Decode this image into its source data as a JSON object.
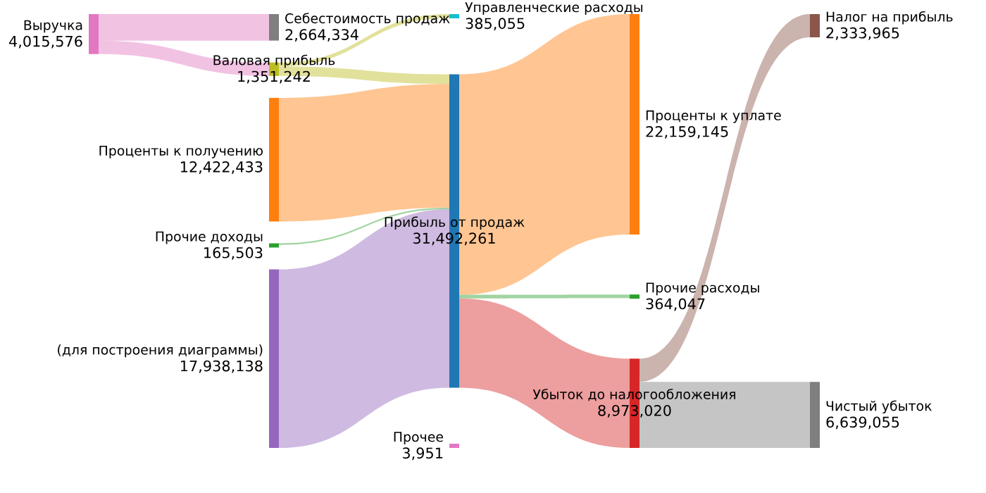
{
  "chart_data": {
    "type": "other",
    "categories": [
      "Выручка",
      "Себестоимость продаж",
      "Валовая прибыль",
      "Управленческие расходы",
      "Проценты к получению",
      "Прочие доходы",
      "(для построения диаграммы)",
      "Прибыль от продаж",
      "Проценты к уплате",
      "Прочие расходы",
      "Убыток до налогообложения",
      "Налог на прибыль",
      "Чистый убыток",
      "Прочее"
    ],
    "values": [
      4015576,
      2664334,
      1351242,
      385055,
      12422433,
      165503,
      17938138,
      31492261,
      22159145,
      364047,
      8973020,
      2333965,
      6639055,
      3951
    ],
    "value_labels": [
      "4,015,576",
      "2,664,334",
      "1,351,242",
      "385,055",
      "12,422,433",
      "165,503",
      "17,938,138",
      "31,492,261",
      "22,159,145",
      "364,047",
      "8,973,020",
      "2,333,965",
      "6,639,055",
      "3,951"
    ],
    "colors": [
      "#e377c2",
      "#7f7f7f",
      "#bcbd22",
      "#17becf",
      "#ff7f0e",
      "#2ca02c",
      "#9467bd",
      "#1f77b4",
      "#ff7f0e",
      "#2ca02c",
      "#d62728",
      "#8c564b",
      "#7f7f7f",
      "#e377c2"
    ],
    "series": [
      {
        "values": [
          null,
          null,
          null,
          null,
          null,
          null,
          null,
          null,
          null,
          null,
          null,
          null,
          null,
          null
        ],
        "colors": [
          null,
          "#e377c2",
          "#e377c2",
          null,
          null,
          null,
          null,
          null,
          null,
          null,
          null,
          null,
          null,
          null
        ]
      },
      {
        "values": [
          null,
          null,
          null,
          null,
          null,
          null,
          null,
          null,
          null,
          null,
          null,
          null,
          null,
          null
        ]
      },
      {
        "values": [
          null,
          null,
          null,
          null,
          null,
          null,
          null,
          null,
          null,
          null,
          null,
          null,
          null,
          null
        ],
        "colors": [
          null,
          null,
          null,
          "#bcbd22",
          null,
          null,
          null,
          "#bcbd22",
          null,
          null,
          null,
          null,
          null,
          null
        ]
      },
      {
        "values": [
          null,
          null,
          null,
          null,
          null,
          null,
          null,
          null,
          null,
          null,
          null,
          null,
          null,
          null
        ]
      },
      {
        "values": [
          null,
          null,
          null,
          null,
          null,
          null,
          null,
          null,
          null,
          null,
          null,
          null,
          null,
          null
        ],
        "colors": [
          null,
          null,
          null,
          null,
          null,
          null,
          null,
          "#ff7f0e",
          null,
          null,
          null,
          null,
          null,
          null
        ]
      },
      {
        "values": [
          null,
          null,
          null,
          null,
          null,
          null,
          null,
          null,
          null,
          null,
          null,
          null,
          null,
          null
        ],
        "colors": [
          null,
          null,
          null,
          null,
          null,
          null,
          null,
          "#2ca02c",
          null,
          null,
          null,
          null,
          null,
          null
        ]
      },
      {
        "values": [
          null,
          null,
          null,
          null,
          null,
          null,
          null,
          null,
          null,
          null,
          null,
          null,
          null,
          null
        ],
        "colors": [
          null,
          null,
          null,
          null,
          null,
          null,
          null,
          "#9467bd",
          null,
          null,
          null,
          null,
          null,
          null
        ]
      },
      {
        "values": [
          null,
          null,
          null,
          null,
          null,
          null,
          null,
          null,
          null,
          null,
          null,
          null,
          null,
          null
        ],
        "colors": [
          null,
          null,
          null,
          null,
          null,
          null,
          null,
          null,
          "#ff7f0e",
          "#2ca02c",
          "#d62728",
          null,
          null,
          null
        ]
      },
      {
        "values": [
          null,
          null,
          null,
          null,
          null,
          null,
          null,
          null,
          null,
          null,
          null,
          null,
          null,
          null
        ]
      },
      {
        "values": [
          null,
          null,
          null,
          null,
          null,
          null,
          null,
          null,
          null,
          null,
          null,
          null,
          null,
          null
        ]
      },
      {
        "values": [
          null,
          null,
          null,
          null,
          null,
          null,
          null,
          null,
          null,
          null,
          null,
          null,
          null,
          null
        ],
        "colors": [
          null,
          null,
          null,
          null,
          null,
          null,
          null,
          null,
          null,
          null,
          null,
          "#8c564b",
          "#7f7f7f",
          null
        ]
      },
      {
        "values": [
          null,
          null,
          null,
          null,
          null,
          null,
          null,
          null,
          null,
          null,
          null,
          null,
          null,
          null
        ]
      },
      {
        "values": [
          null,
          null,
          null,
          null,
          null,
          null,
          null,
          null,
          null,
          null,
          null,
          null,
          null,
          null
        ]
      },
      {
        "values": [
          null,
          null,
          null,
          null,
          null,
          null,
          null,
          null,
          null,
          null,
          null,
          null,
          null,
          null
        ],
        "colors": [
          null,
          null,
          null,
          null,
          null,
          null,
          null,
          null,
          null,
          null,
          "#d62728",
          null,
          null,
          null
        ]
      }
    ]
  }
}
